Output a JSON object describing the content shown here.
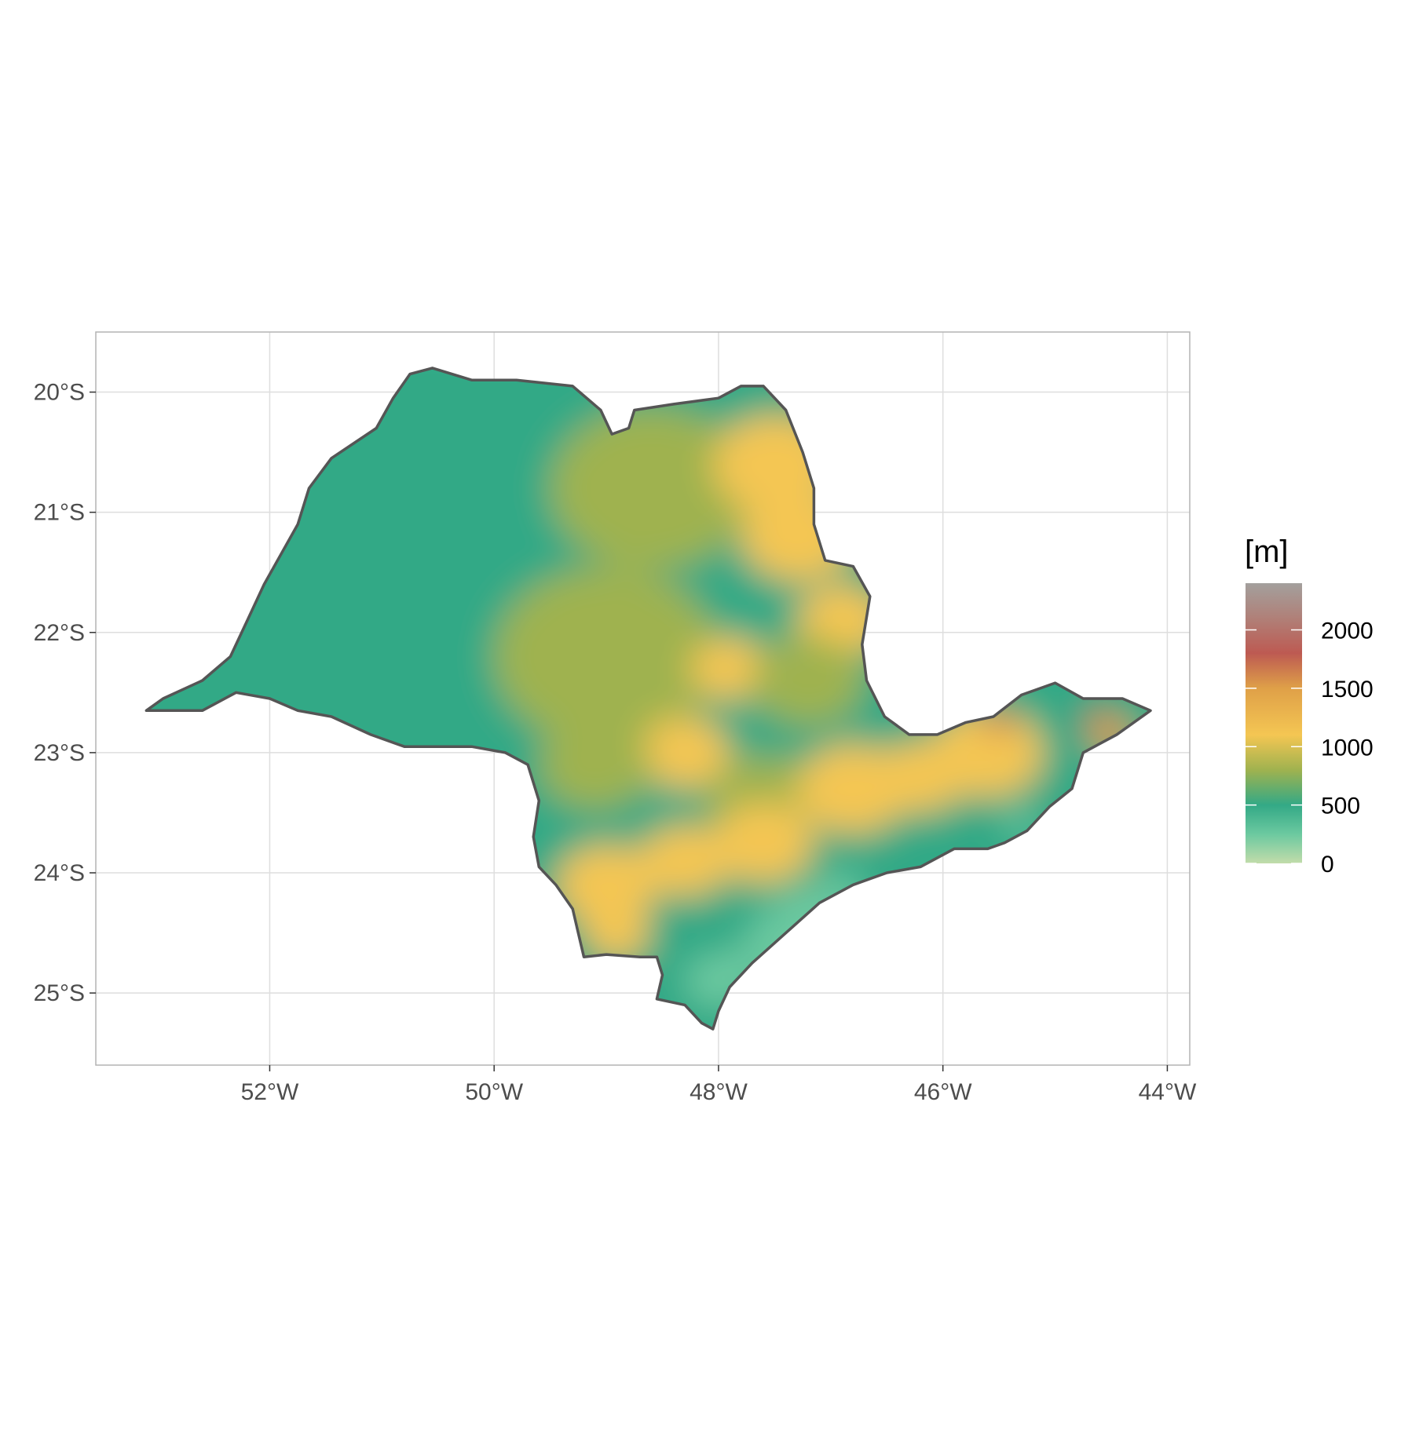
{
  "map": {
    "x_ticks": [
      {
        "value": -52,
        "label": "52°W"
      },
      {
        "value": -50,
        "label": "50°W"
      },
      {
        "value": -48,
        "label": "48°W"
      },
      {
        "value": -46,
        "label": "46°W"
      },
      {
        "value": -44,
        "label": "44°W"
      }
    ],
    "y_ticks": [
      {
        "value": -20,
        "label": "20°S"
      },
      {
        "value": -21,
        "label": "21°S"
      },
      {
        "value": -22,
        "label": "22°S"
      },
      {
        "value": -23,
        "label": "23°S"
      },
      {
        "value": -24,
        "label": "24°S"
      },
      {
        "value": -25,
        "label": "25°S"
      }
    ],
    "lon_range": [
      -53.55,
      -43.8
    ],
    "lat_range": [
      -25.6,
      -19.5
    ],
    "grid": true,
    "border_color": "#555555",
    "elevation_unit": "[m]",
    "legend": {
      "title": "[m]",
      "position": "right",
      "range": [
        0,
        2400
      ],
      "breaks": [
        {
          "value": 0,
          "label": "0"
        },
        {
          "value": 500,
          "label": "500"
        },
        {
          "value": 1000,
          "label": "1000"
        },
        {
          "value": 1500,
          "label": "1500"
        },
        {
          "value": 2000,
          "label": "2000"
        }
      ],
      "color_stops": [
        {
          "value": 0,
          "color": "#c2dcaa"
        },
        {
          "value": 250,
          "color": "#6cc9a0"
        },
        {
          "value": 500,
          "color": "#33a986"
        },
        {
          "value": 800,
          "color": "#9fb24f"
        },
        {
          "value": 1100,
          "color": "#f4c653"
        },
        {
          "value": 1500,
          "color": "#dfa048"
        },
        {
          "value": 1800,
          "color": "#bd5a52"
        },
        {
          "value": 2100,
          "color": "#b08078"
        },
        {
          "value": 2400,
          "color": "#a3a09d"
        }
      ]
    },
    "state_boundary_lonlat": [
      [
        -53.1,
        -22.65
      ],
      [
        -52.95,
        -22.55
      ],
      [
        -52.6,
        -22.4
      ],
      [
        -52.35,
        -22.2
      ],
      [
        -52.2,
        -21.9
      ],
      [
        -52.05,
        -21.6
      ],
      [
        -51.9,
        -21.35
      ],
      [
        -51.75,
        -21.1
      ],
      [
        -51.65,
        -20.8
      ],
      [
        -51.45,
        -20.55
      ],
      [
        -51.05,
        -20.3
      ],
      [
        -50.9,
        -20.05
      ],
      [
        -50.75,
        -19.85
      ],
      [
        -50.55,
        -19.8
      ],
      [
        -50.2,
        -19.9
      ],
      [
        -49.8,
        -19.9
      ],
      [
        -49.3,
        -19.95
      ],
      [
        -49.05,
        -20.15
      ],
      [
        -48.95,
        -20.35
      ],
      [
        -48.8,
        -20.3
      ],
      [
        -48.75,
        -20.15
      ],
      [
        -48.4,
        -20.1
      ],
      [
        -48.0,
        -20.05
      ],
      [
        -47.8,
        -19.95
      ],
      [
        -47.6,
        -19.95
      ],
      [
        -47.4,
        -20.15
      ],
      [
        -47.25,
        -20.5
      ],
      [
        -47.15,
        -20.8
      ],
      [
        -47.15,
        -21.1
      ],
      [
        -47.05,
        -21.4
      ],
      [
        -46.8,
        -21.45
      ],
      [
        -46.65,
        -21.7
      ],
      [
        -46.72,
        -22.1
      ],
      [
        -46.68,
        -22.4
      ],
      [
        -46.52,
        -22.7
      ],
      [
        -46.3,
        -22.85
      ],
      [
        -46.05,
        -22.85
      ],
      [
        -45.8,
        -22.75
      ],
      [
        -45.55,
        -22.7
      ],
      [
        -45.3,
        -22.52
      ],
      [
        -45.0,
        -22.42
      ],
      [
        -44.75,
        -22.55
      ],
      [
        -44.4,
        -22.55
      ],
      [
        -44.15,
        -22.65
      ],
      [
        -44.45,
        -22.85
      ],
      [
        -44.75,
        -23.0
      ],
      [
        -44.85,
        -23.3
      ],
      [
        -45.05,
        -23.45
      ],
      [
        -45.25,
        -23.65
      ],
      [
        -45.45,
        -23.75
      ],
      [
        -45.6,
        -23.8
      ],
      [
        -45.9,
        -23.8
      ],
      [
        -46.2,
        -23.95
      ],
      [
        -46.5,
        -24.0
      ],
      [
        -46.8,
        -24.1
      ],
      [
        -47.1,
        -24.25
      ],
      [
        -47.4,
        -24.5
      ],
      [
        -47.7,
        -24.75
      ],
      [
        -47.9,
        -24.95
      ],
      [
        -48.0,
        -25.15
      ],
      [
        -48.05,
        -25.3
      ],
      [
        -48.15,
        -25.25
      ],
      [
        -48.3,
        -25.1
      ],
      [
        -48.55,
        -25.05
      ],
      [
        -48.5,
        -24.85
      ],
      [
        -48.55,
        -24.7
      ],
      [
        -48.7,
        -24.7
      ],
      [
        -49.0,
        -24.68
      ],
      [
        -49.2,
        -24.7
      ],
      [
        -49.25,
        -24.5
      ],
      [
        -49.3,
        -24.3
      ],
      [
        -49.45,
        -24.1
      ],
      [
        -49.6,
        -23.95
      ],
      [
        -49.65,
        -23.7
      ],
      [
        -49.6,
        -23.4
      ],
      [
        -49.7,
        -23.1
      ],
      [
        -49.9,
        -23.0
      ],
      [
        -50.2,
        -22.95
      ],
      [
        -50.5,
        -22.95
      ],
      [
        -50.8,
        -22.95
      ],
      [
        -51.1,
        -22.85
      ],
      [
        -51.45,
        -22.7
      ],
      [
        -51.75,
        -22.65
      ],
      [
        -52.0,
        -22.55
      ],
      [
        -52.3,
        -22.5
      ],
      [
        -52.6,
        -22.65
      ],
      [
        -52.9,
        -22.65
      ],
      [
        -53.1,
        -22.65
      ]
    ]
  }
}
